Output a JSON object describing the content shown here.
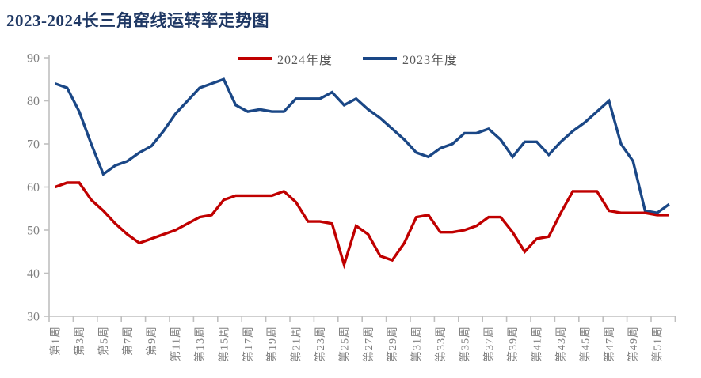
{
  "title": "2023-2024长三角窑线运转率走势图",
  "colors": {
    "title": "#1f3864",
    "series_2024": "#c00000",
    "series_2023": "#1a4786",
    "axis_line": "#bfbfbf",
    "tick_label": "#7f7f7f",
    "legend_text": "#595959",
    "background": "#ffffff"
  },
  "legend": {
    "items": [
      {
        "label": "2024年度",
        "color": "#c00000"
      },
      {
        "label": "2023年度",
        "color": "#1a4786"
      }
    ]
  },
  "chart_data": {
    "type": "line",
    "title": "2023-2024长三角窑线运转率走势图",
    "xlabel": "",
    "ylabel": "",
    "ylim": [
      30,
      90
    ],
    "y_ticks": [
      90,
      80,
      70,
      60,
      50,
      40,
      30
    ],
    "grid": false,
    "legend_position": "top",
    "x_weeks": 52,
    "x_tick_labels": [
      "第1周",
      "第3周",
      "第5周",
      "第7周",
      "第9周",
      "第11周",
      "第13周",
      "第15周",
      "第17周",
      "第19周",
      "第21周",
      "第23周",
      "第25周",
      "第27周",
      "第29周",
      "第31周",
      "第33周",
      "第35周",
      "第37周",
      "第39周",
      "第41周",
      "第43周",
      "第45周",
      "第47周",
      "第49周",
      "第51周"
    ],
    "series": [
      {
        "name": "2023年度",
        "color": "#1a4786",
        "values": [
          84,
          83,
          77.5,
          70,
          63,
          65,
          66,
          68,
          69.5,
          73,
          77,
          80,
          83,
          84,
          85,
          79,
          77.5,
          78,
          77.5,
          77.5,
          80.5,
          80.5,
          80.5,
          82,
          79,
          80.5,
          78,
          76,
          73.5,
          71,
          68,
          67,
          69,
          70,
          72.5,
          72.5,
          73.5,
          71,
          67,
          70.5,
          70.5,
          67.5,
          70.5,
          73,
          75,
          77.5,
          80,
          70,
          66,
          54.5,
          54,
          56
        ]
      },
      {
        "name": "2024年度",
        "color": "#c00000",
        "values": [
          60,
          61,
          61,
          57,
          54.5,
          51.5,
          49,
          47,
          48,
          49,
          50,
          51.5,
          53,
          53.5,
          57,
          58,
          58,
          58,
          58,
          59,
          56.5,
          52,
          52,
          51.5,
          42,
          51,
          49,
          44,
          43,
          47,
          53,
          53.5,
          49.5,
          49.5,
          50,
          51,
          53,
          53,
          49.5,
          45,
          48,
          48.5,
          54,
          59,
          59,
          59,
          54.5,
          54,
          54,
          54,
          53.5,
          53.5
        ]
      }
    ]
  }
}
